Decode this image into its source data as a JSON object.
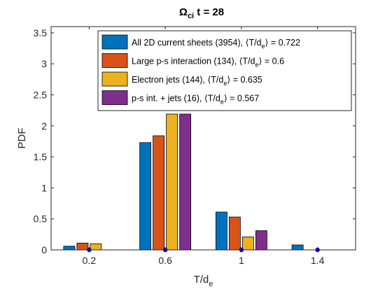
{
  "chart_data": {
    "type": "bar",
    "title": {
      "base": "Ω",
      "sub": "ci",
      "rest": "t = 28"
    },
    "xlabel": {
      "base": "T/d",
      "sub": "e"
    },
    "ylabel": "PDF",
    "xlim": [
      0,
      1.6
    ],
    "ylim": [
      0,
      3.6
    ],
    "xticks": [
      0.2,
      0.6,
      1,
      1.4
    ],
    "xtick_labels": [
      "0.2",
      "0.6",
      "1",
      "1.4"
    ],
    "yticks": [
      0,
      0.5,
      1,
      1.5,
      2,
      2.5,
      3,
      3.5
    ],
    "ytick_labels": [
      "0",
      "0.5",
      "1",
      "1.5",
      "2",
      "2.5",
      "3",
      "3.5"
    ],
    "categories": [
      0.2,
      0.6,
      1,
      1.4
    ],
    "grid": false,
    "legend_position": "top-right",
    "series": [
      {
        "name": "All 2D current sheets (3954), ⟨T/d_e⟩ = 0.722",
        "legend": {
          "pre": "All 2D current sheets (3954), ⟨T/d",
          "sub": "e",
          "post": "⟩ = 0.722"
        },
        "color": "#0072BD",
        "values": [
          0.06,
          1.73,
          0.61,
          0.08
        ]
      },
      {
        "name": "Large p-s interaction (134), ⟨T/d_e⟩ = 0.6",
        "legend": {
          "pre": "Large p-s interaction (134), ⟨T/d",
          "sub": "e",
          "post": "⟩ = 0.6"
        },
        "color": "#D95319",
        "values": [
          0.11,
          1.84,
          0.53,
          0
        ]
      },
      {
        "name": "Electron jets (144), ⟨T/d_e⟩ = 0.635",
        "legend": {
          "pre": "Electron jets (144), ⟨T/d",
          "sub": "e",
          "post": "⟩ = 0.635"
        },
        "color": "#EDB120",
        "values": [
          0.1,
          2.19,
          0.21,
          0
        ]
      },
      {
        "name": "p-s int. + jets (16), ⟨T/d_e⟩ = 0.567",
        "legend": {
          "pre": "p-s int. + jets (16), ⟨T/d",
          "sub": "e",
          "post": "⟩ = 0.567"
        },
        "color": "#7E2F8E",
        "values": [
          0,
          2.19,
          0.31,
          0
        ]
      }
    ],
    "markers": {
      "x": [
        0.2,
        0.6,
        1,
        1.4
      ],
      "y": [
        0,
        0,
        0,
        0
      ],
      "color": "#0000CC"
    }
  }
}
